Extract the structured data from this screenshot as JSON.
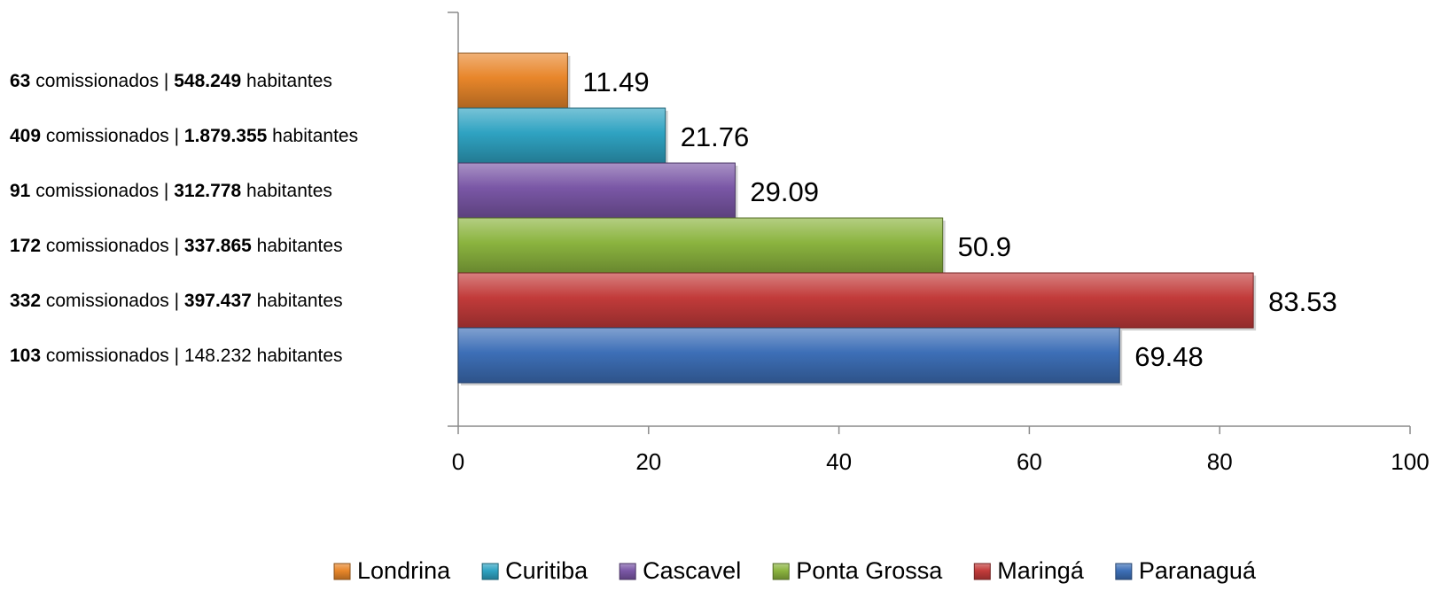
{
  "chart_data": {
    "type": "bar",
    "orientation": "horizontal",
    "xlim": [
      0,
      100
    ],
    "xticks": [
      0,
      20,
      40,
      60,
      80,
      100
    ],
    "grid": false,
    "legend_position": "bottom",
    "categories": [
      {
        "parts": [
          {
            "text": "63",
            "bold": true
          },
          {
            "text": " comissionados | ",
            "bold": false
          },
          {
            "text": "548.249",
            "bold": true
          },
          {
            "text": " habitantes",
            "bold": false
          }
        ]
      },
      {
        "parts": [
          {
            "text": "409",
            "bold": true
          },
          {
            "text": " comissionados | ",
            "bold": false
          },
          {
            "text": "1.879.355",
            "bold": true
          },
          {
            "text": " habitantes",
            "bold": false
          }
        ]
      },
      {
        "parts": [
          {
            "text": "91",
            "bold": true
          },
          {
            "text": " comissionados | ",
            "bold": false
          },
          {
            "text": "312.778",
            "bold": true
          },
          {
            "text": " habitantes",
            "bold": false
          }
        ]
      },
      {
        "parts": [
          {
            "text": "172",
            "bold": true
          },
          {
            "text": " comissionados | ",
            "bold": false
          },
          {
            "text": "337.865",
            "bold": true
          },
          {
            "text": " habitantes",
            "bold": false
          }
        ]
      },
      {
        "parts": [
          {
            "text": "332",
            "bold": true
          },
          {
            "text": " comissionados | ",
            "bold": false
          },
          {
            "text": "397.437",
            "bold": true
          },
          {
            "text": " habitantes",
            "bold": false
          }
        ]
      },
      {
        "parts": [
          {
            "text": "103",
            "bold": true
          },
          {
            "text": " comissionados | 148.232 habitantes",
            "bold": false
          }
        ]
      }
    ],
    "series": [
      {
        "name": "Londrina",
        "value": 11.49,
        "label": "11.49",
        "color": "#E8862A"
      },
      {
        "name": "Curitiba",
        "value": 21.76,
        "label": "21.76",
        "color": "#2FA3C2"
      },
      {
        "name": "Cascavel",
        "value": 29.09,
        "label": "29.09",
        "color": "#7A57A6"
      },
      {
        "name": "Ponta Grossa",
        "value": 50.9,
        "label": "50.9",
        "color": "#8BB43F"
      },
      {
        "name": "Maringá",
        "value": 83.53,
        "label": "83.53",
        "color": "#C23B3A"
      },
      {
        "name": "Paranaguá",
        "value": 69.48,
        "label": "69.48",
        "color": "#3D6FB7"
      }
    ]
  }
}
